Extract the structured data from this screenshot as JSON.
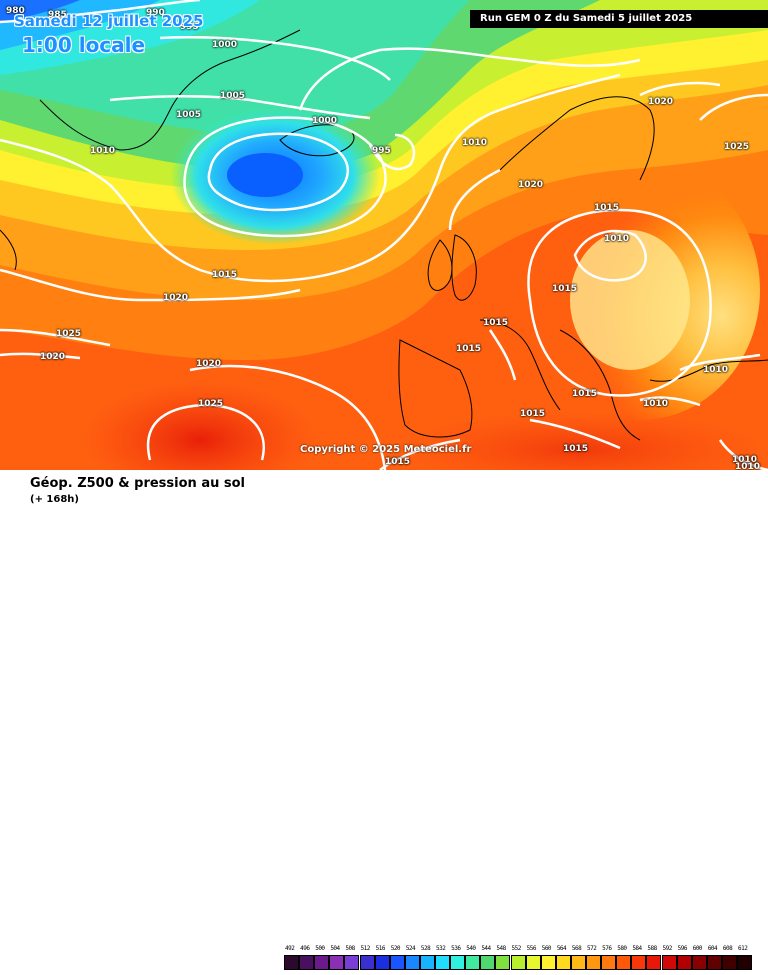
{
  "header": {
    "run_label": "Run GEM 0 Z du Samedi 5 juillet 2025",
    "date_label": "Samedi 12 juillet 2025",
    "time_label": "1:00 locale"
  },
  "map": {
    "copyright": "Copyright © 2025 Meteociel.fr",
    "isobar_labels": [
      {
        "text": "980"
      },
      {
        "text": "985"
      },
      {
        "text": "990"
      },
      {
        "text": "995"
      },
      {
        "text": "1000"
      },
      {
        "text": "1005"
      },
      {
        "text": "1005"
      },
      {
        "text": "1010"
      },
      {
        "text": "1000"
      },
      {
        "text": "995"
      },
      {
        "text": "1010"
      },
      {
        "text": "1020"
      },
      {
        "text": "1025"
      },
      {
        "text": "1020"
      },
      {
        "text": "1015"
      },
      {
        "text": "1010"
      },
      {
        "text": "1015"
      },
      {
        "text": "1015"
      },
      {
        "text": "1015"
      },
      {
        "text": "1015"
      },
      {
        "text": "1020"
      },
      {
        "text": "1025"
      },
      {
        "text": "1020"
      },
      {
        "text": "1020"
      },
      {
        "text": "1025"
      },
      {
        "text": "1015"
      },
      {
        "text": "1015"
      },
      {
        "text": "1015"
      },
      {
        "text": "1010"
      },
      {
        "text": "1010"
      },
      {
        "text": "1010"
      },
      {
        "text": "1015"
      },
      {
        "text": "1010"
      }
    ]
  },
  "footer": {
    "title": "Géop. Z500 & pression au sol",
    "subtitle": "(+ 168h)"
  },
  "colorbar": {
    "ticks": [
      "492",
      "496",
      "500",
      "504",
      "508",
      "512",
      "516",
      "520",
      "524",
      "528",
      "532",
      "536",
      "540",
      "544",
      "548",
      "552",
      "556",
      "560",
      "564",
      "568",
      "572",
      "576",
      "580",
      "584",
      "588",
      "592",
      "596",
      "600",
      "604",
      "608",
      "612"
    ],
    "colors": [
      "#2b0a2e",
      "#4a1060",
      "#6a1a8a",
      "#8b2fb5",
      "#7a3dd6",
      "#3a2fd0",
      "#1b2fe0",
      "#1a56ff",
      "#1a86ff",
      "#19b4ff",
      "#22dcff",
      "#30f0e0",
      "#40e8a0",
      "#50d870",
      "#80e040",
      "#b8f030",
      "#e8f830",
      "#fff030",
      "#ffd820",
      "#ffb818",
      "#ff9810",
      "#ff7810",
      "#ff5808",
      "#f83808",
      "#e81808",
      "#d00808",
      "#b00000",
      "#880000",
      "#600000",
      "#400000",
      "#200000"
    ]
  }
}
